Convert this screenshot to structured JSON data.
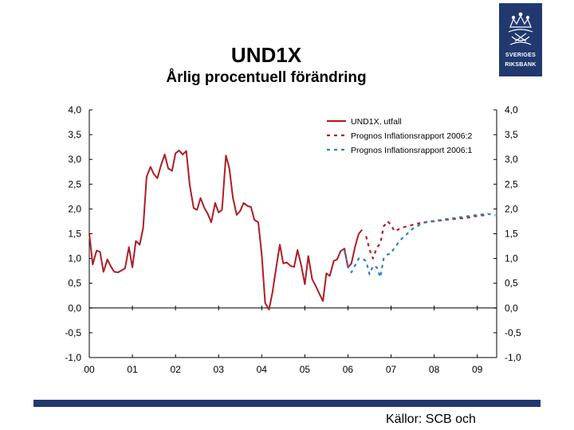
{
  "header": {
    "title": "UND1X",
    "subtitle": "Årlig procentuell förändring"
  },
  "logo": {
    "line1": "SVERIGES",
    "line2": "RIKSBANK",
    "color": "#21396f"
  },
  "footer": {
    "source": "Källor: SCB och",
    "bar_color": "#21396f"
  },
  "chart_data": {
    "type": "line",
    "title": "UND1X",
    "subtitle": "Årlig procentuell förändring",
    "ylim": [
      -1.0,
      4.0
    ],
    "y_ticks": [
      "4,0",
      "3,5",
      "3,0",
      "2,5",
      "2,0",
      "1,5",
      "1,0",
      "0,5",
      "0,0",
      "-0,5",
      "-1,0"
    ],
    "y_tick_values": [
      4.0,
      3.5,
      3.0,
      2.5,
      2.0,
      1.5,
      1.0,
      0.5,
      0.0,
      -0.5,
      -1.0
    ],
    "x_ticks": [
      "00",
      "01",
      "02",
      "03",
      "04",
      "05",
      "06",
      "07",
      "08",
      "09"
    ],
    "x_tick_values": [
      2000,
      2001,
      2002,
      2003,
      2004,
      2005,
      2006,
      2007,
      2008,
      2009
    ],
    "xlim": [
      2000,
      2009.45
    ],
    "grid": false,
    "dual_y_axis": true,
    "legend_position": "top-right",
    "series": [
      {
        "name": "UND1X, utfall",
        "style": "solid",
        "color": "#b01c24",
        "points": [
          [
            2000.0,
            1.5
          ],
          [
            2000.08,
            0.88
          ],
          [
            2000.17,
            1.16
          ],
          [
            2000.25,
            1.13
          ],
          [
            2000.33,
            0.73
          ],
          [
            2000.42,
            0.98
          ],
          [
            2000.5,
            0.84
          ],
          [
            2000.58,
            0.73
          ],
          [
            2000.67,
            0.72
          ],
          [
            2000.75,
            0.76
          ],
          [
            2000.83,
            0.8
          ],
          [
            2000.92,
            1.23
          ],
          [
            2001.0,
            0.82
          ],
          [
            2001.08,
            1.35
          ],
          [
            2001.17,
            1.28
          ],
          [
            2001.25,
            1.62
          ],
          [
            2001.33,
            2.65
          ],
          [
            2001.42,
            2.85
          ],
          [
            2001.5,
            2.7
          ],
          [
            2001.58,
            2.62
          ],
          [
            2001.67,
            2.9
          ],
          [
            2001.75,
            3.1
          ],
          [
            2001.83,
            2.82
          ],
          [
            2001.92,
            2.77
          ],
          [
            2002.0,
            3.12
          ],
          [
            2002.08,
            3.18
          ],
          [
            2002.17,
            3.1
          ],
          [
            2002.25,
            3.17
          ],
          [
            2002.33,
            2.48
          ],
          [
            2002.42,
            2.02
          ],
          [
            2002.5,
            1.98
          ],
          [
            2002.58,
            2.22
          ],
          [
            2002.67,
            2.02
          ],
          [
            2002.75,
            1.9
          ],
          [
            2002.83,
            1.73
          ],
          [
            2002.92,
            2.12
          ],
          [
            2003.0,
            1.93
          ],
          [
            2003.08,
            1.98
          ],
          [
            2003.17,
            3.08
          ],
          [
            2003.25,
            2.82
          ],
          [
            2003.33,
            2.23
          ],
          [
            2003.42,
            1.88
          ],
          [
            2003.5,
            1.96
          ],
          [
            2003.58,
            2.12
          ],
          [
            2003.67,
            2.06
          ],
          [
            2003.75,
            2.04
          ],
          [
            2003.83,
            1.78
          ],
          [
            2003.92,
            1.73
          ],
          [
            2004.0,
            1.08
          ],
          [
            2004.08,
            0.1
          ],
          [
            2004.17,
            -0.03
          ],
          [
            2004.25,
            0.32
          ],
          [
            2004.33,
            0.78
          ],
          [
            2004.42,
            1.28
          ],
          [
            2004.5,
            0.9
          ],
          [
            2004.58,
            0.92
          ],
          [
            2004.67,
            0.85
          ],
          [
            2004.75,
            0.83
          ],
          [
            2004.83,
            1.17
          ],
          [
            2004.92,
            0.85
          ],
          [
            2005.0,
            0.48
          ],
          [
            2005.08,
            1.05
          ],
          [
            2005.17,
            0.58
          ],
          [
            2005.25,
            0.45
          ],
          [
            2005.33,
            0.3
          ],
          [
            2005.42,
            0.14
          ],
          [
            2005.5,
            0.7
          ],
          [
            2005.58,
            0.65
          ],
          [
            2005.67,
            0.95
          ],
          [
            2005.75,
            0.98
          ],
          [
            2005.83,
            1.15
          ],
          [
            2005.92,
            1.2
          ],
          [
            2006.0,
            0.82
          ],
          [
            2006.08,
            0.9
          ],
          [
            2006.17,
            1.25
          ],
          [
            2006.25,
            1.5
          ],
          [
            2006.33,
            1.58
          ]
        ]
      },
      {
        "name": "Prognos Inflationsrapport 2006:2",
        "style": "dashed",
        "color": "#b01c24",
        "points": [
          [
            2006.42,
            1.45
          ],
          [
            2006.5,
            1.18
          ],
          [
            2006.58,
            1.0
          ],
          [
            2006.67,
            1.22
          ],
          [
            2006.75,
            1.3
          ],
          [
            2006.83,
            1.65
          ],
          [
            2006.92,
            1.75
          ],
          [
            2007.0,
            1.68
          ],
          [
            2007.08,
            1.55
          ],
          [
            2007.25,
            1.62
          ],
          [
            2007.5,
            1.68
          ],
          [
            2007.75,
            1.73
          ],
          [
            2008.0,
            1.75
          ],
          [
            2008.25,
            1.78
          ],
          [
            2008.5,
            1.8
          ],
          [
            2008.75,
            1.82
          ],
          [
            2009.0,
            1.86
          ],
          [
            2009.25,
            1.88
          ]
        ]
      },
      {
        "name": "Prognos Inflationsrapport 2006:1",
        "style": "dashed",
        "color": "#2f7fc1",
        "points": [
          [
            2005.92,
            1.15
          ],
          [
            2006.0,
            0.85
          ],
          [
            2006.08,
            0.72
          ],
          [
            2006.25,
            1.0
          ],
          [
            2006.33,
            1.0
          ],
          [
            2006.42,
            0.95
          ],
          [
            2006.5,
            0.68
          ],
          [
            2006.58,
            0.85
          ],
          [
            2006.67,
            0.82
          ],
          [
            2006.75,
            0.62
          ],
          [
            2006.83,
            1.0
          ],
          [
            2006.92,
            1.08
          ],
          [
            2007.0,
            1.1
          ],
          [
            2007.08,
            1.22
          ],
          [
            2007.25,
            1.4
          ],
          [
            2007.5,
            1.6
          ],
          [
            2007.75,
            1.72
          ],
          [
            2008.0,
            1.76
          ],
          [
            2008.25,
            1.79
          ],
          [
            2008.5,
            1.82
          ],
          [
            2008.75,
            1.85
          ],
          [
            2009.0,
            1.88
          ],
          [
            2009.25,
            1.9
          ],
          [
            2009.42,
            1.87
          ]
        ]
      }
    ]
  }
}
